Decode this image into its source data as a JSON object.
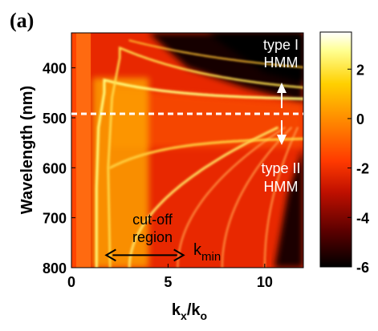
{
  "panel_label": "(a)",
  "chart_data": {
    "type": "heatmap",
    "title": "",
    "xlabel": {
      "main": "k",
      "sub1": "x",
      "mid": "/k",
      "sub2": "o"
    },
    "ylabel": "Wavelength (nm)",
    "xlim": [
      0,
      12
    ],
    "ylim": [
      330,
      800
    ],
    "y_inverted": true,
    "x_ticks": [
      0,
      5,
      10
    ],
    "x_tick_labels": [
      "0",
      "5",
      "10"
    ],
    "y_ticks": [
      400,
      500,
      600,
      700,
      800
    ],
    "y_tick_labels": [
      "400",
      "500",
      "600",
      "700",
      "800"
    ],
    "colorbar": {
      "range": [
        -6,
        3.5
      ],
      "ticks": [
        2,
        0,
        -2,
        -4,
        -6
      ],
      "tick_labels": [
        "2",
        "0",
        "-2",
        "-4",
        "-6"
      ],
      "colormap": [
        "#000000",
        "#5a0000",
        "#c01000",
        "#ff3a00",
        "#ff8800",
        "#ffd000",
        "#ffff90",
        "#ffffff"
      ]
    },
    "threshold_line": {
      "wavelength": 492,
      "label_above": [
        "type I",
        "HMM"
      ],
      "label_below": [
        "type II",
        "HMM"
      ]
    },
    "annotations": {
      "cutoff": {
        "lines": [
          "cut-off",
          "region"
        ],
        "x_from": 1.8,
        "x_to": 5.8,
        "y": 775
      },
      "kmin": {
        "main": "k",
        "sub": "min"
      }
    },
    "bright_bands": [
      {
        "name": "light line",
        "x_at_800": 1.0,
        "x_at_330": 1.0
      }
    ]
  }
}
